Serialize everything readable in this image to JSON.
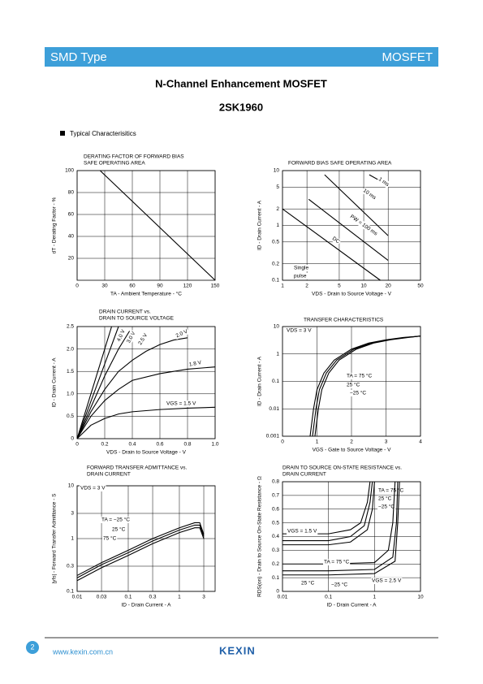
{
  "header": {
    "left": "SMD Type",
    "right": "MOSFET"
  },
  "title": "N-Channel Enhancement MOSFET",
  "part_number": "2SK1960",
  "section": "Typical Characterisitics",
  "chart_data": [
    {
      "type": "line",
      "title": [
        "DERATING FACTOR OF FORWARD BIAS",
        "SAFE OPERATING AREA"
      ],
      "xlabel": "TA - Ambient Temperature - °C",
      "ylabel": "dT - Derating Factor - %",
      "xlim": [
        0,
        150
      ],
      "ylim": [
        0,
        100
      ],
      "xticks": [
        0,
        30,
        60,
        90,
        120,
        150
      ],
      "yticks": [
        20,
        40,
        60,
        80,
        100
      ],
      "grid": true,
      "color": "#000000",
      "series": [
        {
          "x": [
            25,
            150
          ],
          "values": [
            100,
            0
          ]
        }
      ]
    },
    {
      "type": "line",
      "title": [
        "FORWARD BIAS SAFE OPERATING AREA"
      ],
      "xlabel": "VDS - Drain to Source Voltage - V",
      "ylabel": "ID - Drain Current - A",
      "xscale": "log",
      "yscale": "log",
      "xlim": [
        1,
        50
      ],
      "ylim": [
        0.1,
        10
      ],
      "xticks": [
        1,
        2,
        5,
        10,
        20,
        50
      ],
      "yticks": [
        0.1,
        0.2,
        0.5,
        1,
        2,
        5,
        10
      ],
      "grid": true,
      "color": "#000000",
      "series": [
        {
          "name": "1 ms",
          "x": [
            11.7,
            20
          ],
          "values": [
            8.4,
            5.4
          ]
        },
        {
          "name": "10 ms",
          "x": [
            3.3,
            20
          ],
          "values": [
            8.4,
            0.65
          ]
        },
        {
          "name": "PW = 100 ms",
          "x": [
            2.1,
            20
          ],
          "values": [
            3,
            0.23
          ]
        },
        {
          "name": "DC",
          "x": [
            1,
            16
          ],
          "values": [
            2,
            0.1
          ]
        }
      ],
      "annotations": [
        "Single",
        "pulse"
      ]
    },
    {
      "type": "line",
      "title": [
        "DRAIN CURRENT vs.",
        "DRAIN TO SOURCE VOLTAGE"
      ],
      "xlabel": "VDS - Drain to Source Voltage - V",
      "ylabel": "ID - Drain Current - A",
      "xlim": [
        0,
        1
      ],
      "ylim": [
        0,
        2.5
      ],
      "xticks": [
        0,
        0.2,
        0.4,
        0.6,
        0.8,
        {
          "value": 1,
          "label": "1.0"
        }
      ],
      "yticks": [
        0,
        0.5,
        {
          "value": 1,
          "label": "1.0"
        },
        1.5,
        {
          "value": 2,
          "label": "2.0"
        },
        2.5
      ],
      "grid": true,
      "color": "#000000",
      "series": [
        {
          "name": "4.0 V",
          "x": [
            0,
            0.25
          ],
          "values": [
            0,
            2.5
          ]
        },
        {
          "name": "3.0 V",
          "x": [
            0,
            0.3
          ],
          "values": [
            0,
            2.5
          ]
        },
        {
          "name": "2.5 V",
          "x": [
            0,
            0.1,
            0.2,
            0.3,
            0.38
          ],
          "values": [
            0,
            0.7,
            1.4,
            2.0,
            2.4
          ]
        },
        {
          "name": "2.0 V",
          "x": [
            0,
            0.1,
            0.2,
            0.3,
            0.4,
            0.5,
            0.6,
            0.7,
            0.8
          ],
          "values": [
            0,
            0.6,
            1.1,
            1.5,
            1.75,
            1.95,
            2.1,
            2.2,
            2.25
          ]
        },
        {
          "name": "1.8 V",
          "x": [
            0,
            0.1,
            0.2,
            0.3,
            0.4,
            0.6,
            0.8,
            1
          ],
          "values": [
            0,
            0.5,
            0.85,
            1.1,
            1.3,
            1.45,
            1.55,
            1.6
          ]
        },
        {
          "name": "VGS = 1.5 V",
          "x": [
            0,
            0.1,
            0.2,
            0.3,
            0.4,
            0.6,
            0.8,
            1
          ],
          "values": [
            0,
            0.3,
            0.45,
            0.55,
            0.6,
            0.65,
            0.68,
            0.7
          ]
        }
      ]
    },
    {
      "type": "line",
      "title": [
        "TRANSFER CHARACTERISTICS"
      ],
      "xlabel": "VGS - Gate to Source Voltage - V",
      "ylabel": "ID - Drain Current - A",
      "yscale": "log",
      "xlim": [
        0,
        4
      ],
      "ylim": [
        0.001,
        10
      ],
      "xticks": [
        0,
        1,
        2,
        3,
        4
      ],
      "yticks": [
        0.001,
        0.01,
        0.1,
        1,
        10
      ],
      "grid": true,
      "color": "#000000",
      "series": [
        {
          "name": "TA = 75 °C",
          "x": [
            0.8,
            0.9,
            1.0,
            1.2,
            1.5,
            2,
            2.5,
            3,
            3.5,
            4
          ],
          "values": [
            0.001,
            0.01,
            0.05,
            0.2,
            0.6,
            1.5,
            2.5,
            3.3,
            4,
            4.5
          ]
        },
        {
          "name": "25 °C",
          "x": [
            0.87,
            0.97,
            1.07,
            1.27,
            1.57,
            2.07,
            2.57,
            3.07,
            3.57,
            4
          ],
          "values": [
            0.001,
            0.01,
            0.05,
            0.2,
            0.6,
            1.5,
            2.5,
            3.3,
            4,
            4.5
          ]
        },
        {
          "name": "−25 °C",
          "x": [
            0.94,
            1.04,
            1.14,
            1.34,
            1.64,
            2.14,
            2.64,
            3.14,
            3.64,
            4
          ],
          "values": [
            0.001,
            0.01,
            0.05,
            0.2,
            0.6,
            1.5,
            2.5,
            3.3,
            4,
            4.5
          ]
        }
      ],
      "annotations": [
        "VDS = 3 V"
      ]
    },
    {
      "type": "line",
      "title": [
        "FORWARD TRANSFER ADMITTANCE vs.",
        "DRAIN CURRENT"
      ],
      "xlabel": "ID - Drain Current - A",
      "ylabel": "|yfs| - Forward Transfer Admittance - S",
      "xscale": "log",
      "yscale": "log",
      "xlim": [
        0.01,
        5
      ],
      "ylim": [
        0.1,
        10
      ],
      "xticks": [
        0.01,
        0.03,
        0.1,
        0.3,
        1,
        3
      ],
      "yticks": [
        0.1,
        0.3,
        1,
        3,
        10
      ],
      "grid": true,
      "color": "#000000",
      "series": [
        {
          "name": "TA = −25 °C",
          "x": [
            0.01,
            0.03,
            0.1,
            0.3,
            1,
            2,
            2.5,
            3
          ],
          "values": [
            0.2,
            0.35,
            0.6,
            1.0,
            1.6,
            2.0,
            2.0,
            1.2
          ]
        },
        {
          "name": "25 °C",
          "x": [
            0.01,
            0.03,
            0.1,
            0.3,
            1,
            2,
            2.5,
            3
          ],
          "values": [
            0.18,
            0.32,
            0.54,
            0.9,
            1.45,
            1.8,
            1.8,
            1.1
          ]
        },
        {
          "name": "75 °C",
          "x": [
            0.01,
            0.03,
            0.1,
            0.3,
            1,
            2,
            2.5,
            3
          ],
          "values": [
            0.16,
            0.28,
            0.48,
            0.8,
            1.3,
            1.6,
            1.6,
            1.0
          ]
        }
      ],
      "annotations": [
        "VDS = 3 V"
      ]
    },
    {
      "type": "line",
      "title": [
        "DRAIN TO SOURCE ON-STATE RESISTANCE vs.",
        "DRAIN CURRENT"
      ],
      "xlabel": "ID - Drain Current - A",
      "ylabel": "RDS(on) - Drain to Source On-State Resistance - Ω",
      "xscale": "log",
      "xlim": [
        0.01,
        10
      ],
      "ylim": [
        0,
        0.8
      ],
      "xticks": [
        0.01,
        0.1,
        1,
        10
      ],
      "yticks": [
        0,
        0.1,
        0.2,
        0.3,
        0.4,
        0.5,
        0.6,
        0.7,
        0.8
      ],
      "grid": true,
      "color": "#000000",
      "series": [
        {
          "name": "TA = 75 °C",
          "x": [
            0.01,
            0.1,
            0.3,
            0.5,
            0.7,
            0.8
          ],
          "values": [
            0.42,
            0.42,
            0.45,
            0.5,
            0.65,
            0.8
          ]
        },
        {
          "name": "25 °C",
          "x": [
            0.01,
            0.1,
            0.3,
            0.6,
            0.8,
            0.9
          ],
          "values": [
            0.37,
            0.37,
            0.4,
            0.48,
            0.65,
            0.8
          ]
        },
        {
          "name": "−25 °C",
          "x": [
            0.01,
            0.1,
            0.3,
            0.7,
            0.9,
            1
          ],
          "values": [
            0.34,
            0.34,
            0.36,
            0.45,
            0.6,
            0.8
          ]
        },
        {
          "name": "TA = 75 °C",
          "x": [
            0.01,
            0.1,
            1,
            2,
            2.5,
            2.8
          ],
          "values": [
            0.2,
            0.2,
            0.21,
            0.3,
            0.5,
            0.8
          ]
        },
        {
          "name": "25 °C",
          "x": [
            0.01,
            0.1,
            1,
            2.5,
            3,
            3.2
          ],
          "values": [
            0.15,
            0.15,
            0.16,
            0.25,
            0.5,
            0.8
          ]
        },
        {
          "name": "−25 °C",
          "x": [
            0.01,
            0.1,
            1,
            2.8,
            3.2,
            3.5
          ],
          "values": [
            0.12,
            0.12,
            0.13,
            0.22,
            0.5,
            0.8
          ]
        }
      ],
      "annotations": [
        "VGS = 1.5 V",
        "VGS = 2.5 V"
      ]
    }
  ],
  "footer": {
    "page": "2",
    "url": "www.kexin.com.cn",
    "brand": "KEXIN"
  }
}
